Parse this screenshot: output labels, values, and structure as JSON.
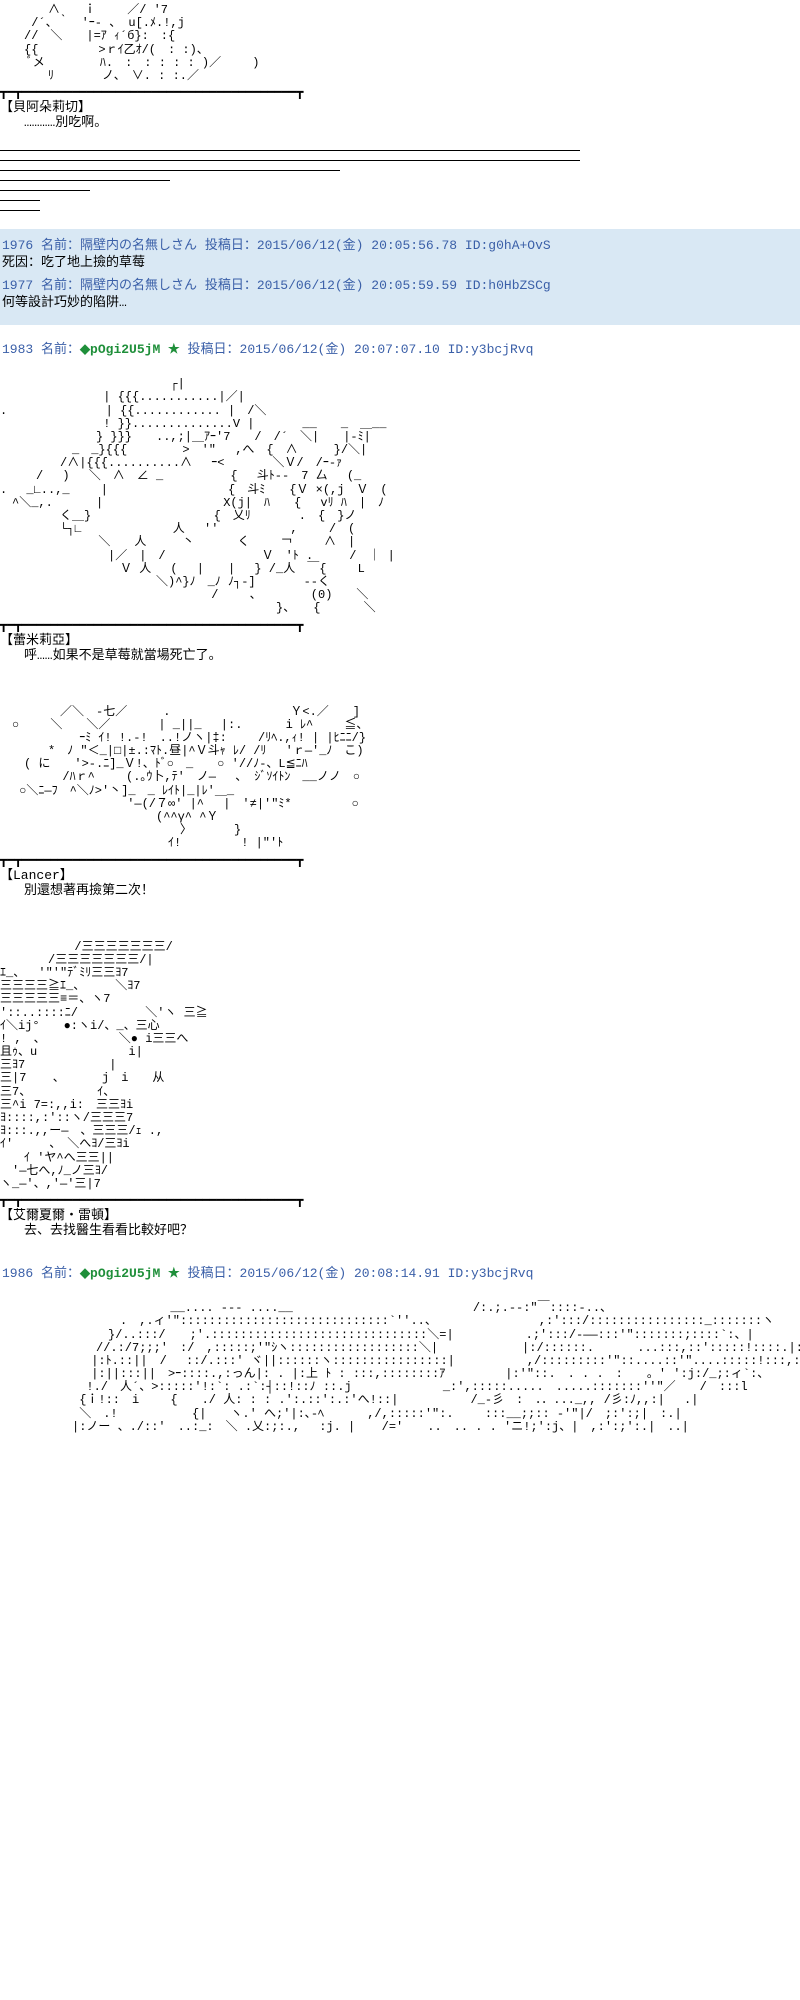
{
  "ascii": {
    "art1": "　　　　∧　　ｉ　　 ／/ '7\n　　 /´、｀　'ｰ- 、 u[.ﾒ.!,j\n　　//　＼　　|=ｱ ｨ´б}:　:{\n　　{{　　　　　>ｒｲ乙ｵ/(　: :)、\n　　 ﾞメ　　　　 ﾊ.　:　: : : : )／　 　)\n　　　　ﾘ　　　　ノ、　∨. : :.／",
    "divider_long": "┳━┳━━━━━━━━━━━━━━━━━━━━━━━━━━━━━━━━━━━━━━┳",
    "art2": "　　　　　　　　　　　　 　 ┌|\n　　　　　　　　 | {{{...........|／|\n. 　　　　　　　 | {{............ |　/＼\n　　　　　　　　 ! }}..............V |　　　　__　　_　＿__\n　　　　　　　　} }}}　　..,;|＿ｱｰ'7　　/　/´　＼|　　|-ﾐ|\n　　　　　　_　_}{{{　　　 　>　'\"　 ,へ　{　∧　　　}/＼|\n　　　　　/∧|{{{..........∧　 ｰ<　　　　＼Ｖ/　/ｰ-ｧ\n　　　/　 )　 ＼　∧　∠ _　　　　　 {　 斗ﾄ--　7 厶　 (_\n.　 _∟..,_　　 |　　　　　　　　　　{　斗ﾐ　　{Ｖ ×(,j　Ｖ　(\n　^＼_,. 　　　|　　　　　　　　　　X(j|　ﾊ　　{　 vﾘ ﾊ　|　ﾉ\n　　　　　く＿}　 　　　　　　　　 {　乂ﾘ　　　　.　{　}ノ\n　　　　　└┐∟　　　　　　　 人　 ''　　　　　　,　　 /　(\n　　　　　　 　 ＼　　人　　　丶 　　　く　　 ￢ 　　∧　|\n　　　　　　　　　|／　|　/　　　　　　　　Ｖ　'ﾄ .　　　/　｜ |\n　　　　　　　　　　Ｖ 人　 (　 |　　|　 } /_人　￣{　　 L\n　　　　　　　　　　　　　＼)^}ﾉ　_ﾉ ﾉ┐-]　　　　--く\n　　　　　　　　　　　　　　　　　 /　　 、　　　　 (0)　　＼\n　　　　　　　　　　　　　　　　　　　　　　　}、　　{　　　 ＼",
    "art3": "　　　　　／＼　-七／　　　.　　　　　　　　　　Ｙ<.／　　]\n　○　　 ＼　　＼／　　　　| _||_　 |:.　　　 i ﾚ^　 　≦、\n　　　　　　 ｰﾐ ｲ! !.-!　..!ノヽ|‡:　　 /ﾘﾍ.,ｨ! | |ﾋﾆﾆ/}\n　　　　*　ﾉ \"＜_|□|±.:ﾏﾄ.昼|^Ｖ斗ｬ ﾚ/ /ﾘ　 'ｒ―'_ﾉ　こ)\n　　( に　　'>-.ﾆ]_Ｖ!、ﾄﾞ○　_　　○ '//ﾉ-、L≦ﾆﾊ\n　　 　　 /ﾊｒ^　　 (.｡ｳ卜,ﾃ'　ノ―　 、 ｼﾞｿｲﾄﾝ　__ノノ　○\n　 ○＼ﾆ―ﾌ　^＼ﾉ>'丶]_　_ ﾚｲﾄ|_|ﾚ'＿_\n　　　　　　　　　　 '―(/７∞' |^　 |　'≠|'\"ﾐ*　　　　　○\n　　　　　　　　　　　　　(^^γ^ ^Ｙ\n　　　　　　　　　　　　　　　〉　　　　}\n　　　　　　　　　　　　　　ｲ!　　　　　! |\"'ﾄ",
    "art4": "　　　 　　 /三三三三三三三/\n　　　　/三三三三三三三/|\nｴ_、　 '\"'\"ﾃﾞﾐﾘ三三ﾖ7\n三三三三≧ｴ_、　　　＼ﾖ7\n三三三三三≡＝、ヽ7\n'::..::::ﾆ/　　　　　 ＼'ヽ 三≧\nｲ＼ij°　　●:ヽi/、_、三心\n! ,　、　　　　　　 ＼● i三三へ\n且ｩ、u 　　　　　　　i|\n三ﾖ7　　　　　　　|\n三|7 　 、　　　 j　i　　从\n三7、　　　　　　ｲ、\n三^i 7=:,,i:　三三ﾖi\nﾖ::::,:'::ヽ/三三三7\nﾖ:::.,,ー―　、三三三/ｪ .,\nｲ'　　　、　＼へﾖ/三ﾖi\n　　ｲ 'ヤ^へ三三||\n　'―七へ,ﾉ_ノ三ﾖ/\nヽ_―'、,'―'三|7",
    "art5": "　　　　　　　　　　　 　　 __.... --- ....__　　　　　　　　　　　　　　　/:.;.-‐:\"￣::::‐..、\n　　　　　　　　　　.　,.ィ'\":::::::::::::::::::::::::::::`''..、　　　　　　　　　,:':::/::::::::::::::::_:::::::ヽ\n　　　　　　　　　}/..:::/　　;'.::::::::::::::::::::::::::::::＼=|　　　　　　.;':::/-――:::'\":::::::;::::`:、|\n　　　　　　　　//.:/7;;;'　:/　,:::::;'\"ｼヽ::::::::::::::::::＼|　　　　　　　|:/::::::.　　　 ...:::,::':::::!::::.|::|\n　　　　　　　 |:ﾄ.::||　/　 ::/.:::' ヾ||::::::ヽ::::::::::::::::|　　　　　　,/:::::::::'\"::....::'\"....:::::!:::,:::|.:.|\n　　　　　　　 |:||:::||　>ｰ::::.,:っん|: . |:上 ﾄ : :::,::::::::ｱ　　　　　|:'\"::.　. . .　:　　。' ':j:/_;:ィ`:、\n　　　　　 　 !./　人´、>:::::'!:`: .:`:┤::!::ﾉ ::.j　　 　　　　　_:',:::::.....　.....:::::::''\"／　　/　:::l\n　　　　　　 {ｉ!::　i　　 {　　./ 人: : : .':.::':.:'へ!::|　　　　　　/_-彡　:　．．..._,, /彡:ﾉ,,:| 　.|\n　　　　　　 ＼　.!　　　　 　 {|　　ヽ.' へ;'|:､-ﾍ　　　 ,/,:::::'\":.　　 :::__;;:: -'\"|/　;:':;|　:.|\n　　　　　　|:ノー 、./::'　..:_:　＼ .乂:;:.,　 :j. | 　 /='　　..　.. . . 'ニ!;':j、|　,:':;':.|　..|"
  },
  "post1": {
    "label": "【貝阿朵莉切】",
    "line": "…………別吃啊。"
  },
  "hposts": {
    "p1976": {
      "num": "1976",
      "name": "名前：隔壁内の名無しさん",
      "meta": "投稿日：2015/06/12(金) 20:05:56.78 ID:g0hA+OvS",
      "body": "死因：吃了地上撿的草莓"
    },
    "p1977": {
      "num": "1977",
      "name": "名前：隔壁内の名無しさん",
      "meta": "投稿日：2015/06/12(金) 20:05:59.59 ID:h0HbZSCg",
      "body": "何等設計巧妙的陷阱…"
    }
  },
  "p1983": {
    "num": "1983",
    "name": "名前：",
    "trip": "◆pOgi2U5jM ★",
    "meta": "投稿日：2015/06/12(金) 20:07:07.10 ID:y3bcjRvq"
  },
  "block2": {
    "label": "【蕾米莉亞】",
    "line": "呼……如果不是草莓就當場死亡了。"
  },
  "block3": {
    "label": "【Lancer】",
    "line": "別還想著再撿第二次！"
  },
  "block4": {
    "label": "【艾爾夏爾・雷頓】",
    "line": "去、去找醫生看看比較好吧？"
  },
  "p1986": {
    "num": "1986",
    "name": "名前：",
    "trip": "◆pOgi2U5jM ★",
    "meta": "投稿日：2015/06/12(金) 20:08:14.91 ID:y3bcjRvq"
  }
}
